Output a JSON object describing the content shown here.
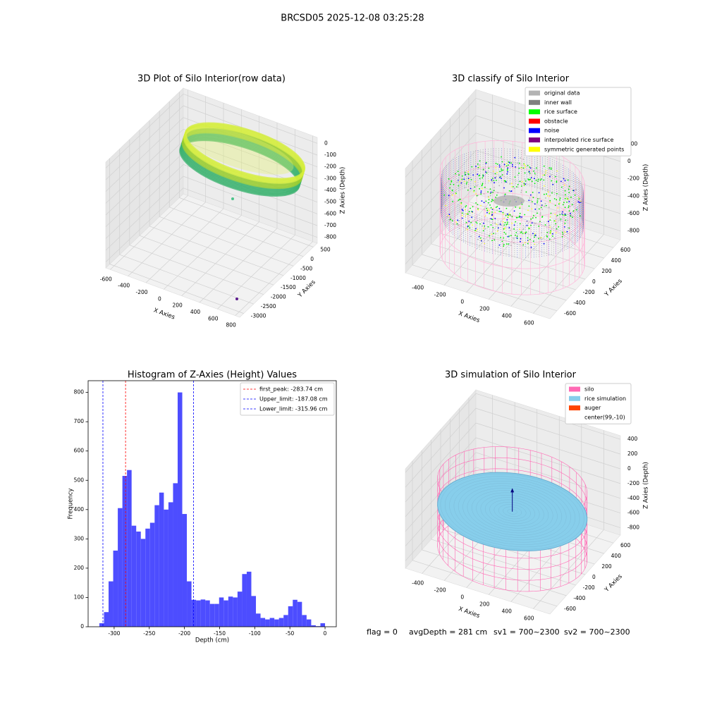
{
  "title": "BRCSD05 2025-12-08 03:25:28",
  "footer": [
    "flag = 0",
    "avgDepth = 281 cm",
    "sv1 = 700~2300",
    "sv2 = 700~2300"
  ],
  "chart_data": [
    {
      "type": "scatter3d",
      "title": "3D Plot of Silo Interior(row data)",
      "xlabel": "X Axies",
      "ylabel": "Y Axies",
      "zlabel": "Z Axies (Depth)",
      "xlim": [
        -650,
        850
      ],
      "ylim": [
        -3200,
        700
      ],
      "zlim": [
        -850,
        50
      ],
      "xticks": [
        -600,
        -400,
        -200,
        0,
        200,
        400,
        600,
        800
      ],
      "yticks": [
        -3000,
        -2500,
        -2000,
        -1500,
        -1000,
        -500,
        0,
        500
      ],
      "zticks": [
        -800,
        -700,
        -600,
        -500,
        -400,
        -300,
        -200,
        -100,
        0
      ]
    },
    {
      "type": "scatter3d",
      "title": "3D classify of Silo Interior",
      "xlabel": "X Axies",
      "ylabel": "Y Axies",
      "zlabel": "Z Axies (Depth)",
      "xlim": [
        -550,
        750
      ],
      "ylim": [
        -750,
        750
      ],
      "zlim": [
        -900,
        300
      ],
      "xticks": [
        -400,
        -200,
        0,
        200,
        400,
        600
      ],
      "yticks": [
        -600,
        -400,
        -200,
        0,
        200,
        400,
        600
      ],
      "zticks": [
        -800,
        -600,
        -400,
        -200,
        0,
        200
      ],
      "legend": [
        {
          "name": "original data",
          "color": "#b3b3b3"
        },
        {
          "name": "inner wall",
          "color": "#808080"
        },
        {
          "name": "rice surface",
          "color": "#00ff00"
        },
        {
          "name": "obstacle",
          "color": "#ff0000"
        },
        {
          "name": "noise",
          "color": "#0000ff"
        },
        {
          "name": "interpolated rice surface",
          "color": "#800080"
        },
        {
          "name": "symmetric generated points",
          "color": "#ffff00"
        }
      ]
    },
    {
      "type": "histogram",
      "title": "Histogram of Z-Axies (Height) Values",
      "xlabel": "Depth (cm)",
      "ylabel": "Frequency",
      "color": "#4d4dff",
      "bins": [
        -321,
        -314.45,
        -307.9,
        -301.35,
        -294.8,
        -288.25,
        -281.7,
        -275.15,
        -268.6,
        -262.05,
        -255.5,
        -248.95,
        -242.4,
        -235.85,
        -229.3,
        -222.75,
        -216.2,
        -209.65,
        -203.1,
        -196.55,
        -190,
        -183.45,
        -176.9,
        -170.35,
        -163.8,
        -157.25,
        -150.7,
        -144.15,
        -137.6,
        -131.05,
        -124.5,
        -117.95,
        -111.4,
        -104.85,
        -98.3,
        -91.75,
        -85.2,
        -78.65,
        -72.1,
        -65.55,
        -59,
        -52.45,
        -45.9,
        -39.35,
        -32.8,
        -26.25,
        -19.7,
        -13.15,
        -6.6,
        0
      ],
      "values": [
        12,
        50,
        155,
        260,
        405,
        515,
        535,
        345,
        325,
        300,
        335,
        355,
        415,
        458,
        400,
        425,
        490,
        800,
        385,
        155,
        92,
        90,
        93,
        90,
        78,
        78,
        100,
        90,
        103,
        100,
        120,
        180,
        188,
        105,
        45,
        30,
        25,
        30,
        25,
        30,
        40,
        70,
        92,
        85,
        40,
        25,
        5,
        2,
        12
      ],
      "xlim": [
        -337,
        16
      ],
      "ylim": [
        0,
        840
      ],
      "xticks": [
        -300,
        -250,
        -200,
        -150,
        -100,
        -50,
        0
      ],
      "yticks": [
        0,
        100,
        200,
        300,
        400,
        500,
        600,
        700,
        800
      ],
      "vlines": [
        {
          "name": "first_peak: -283.74 cm",
          "value": -283.74,
          "color": "#ff0000"
        },
        {
          "name": "Upper_limit: -187.08 cm",
          "value": -187.08,
          "color": "#0000ff"
        },
        {
          "name": "Lower_limit: -315.96 cm",
          "value": -315.96,
          "color": "#0000ff"
        }
      ]
    },
    {
      "type": "scatter3d",
      "title": "3D simulation of Silo Interior",
      "xlabel": "X Axies",
      "ylabel": "Y Axies",
      "zlabel": "Z Axies (Depth)",
      "xlim": [
        -550,
        750
      ],
      "ylim": [
        -750,
        750
      ],
      "zlim": [
        -900,
        450
      ],
      "xticks": [
        -400,
        -200,
        0,
        200,
        400,
        600
      ],
      "yticks": [
        -600,
        -400,
        -200,
        0,
        200,
        400,
        600
      ],
      "zticks": [
        -800,
        -600,
        -400,
        -200,
        0,
        200,
        400
      ],
      "legend": [
        {
          "name": "silo",
          "color": "#ff69b4"
        },
        {
          "name": "rice simulation",
          "color": "#87ceeb"
        },
        {
          "name": "auger",
          "color": "#ff4500"
        },
        {
          "name": "center(99,-10)",
          "color": "#ffffff"
        }
      ]
    }
  ]
}
